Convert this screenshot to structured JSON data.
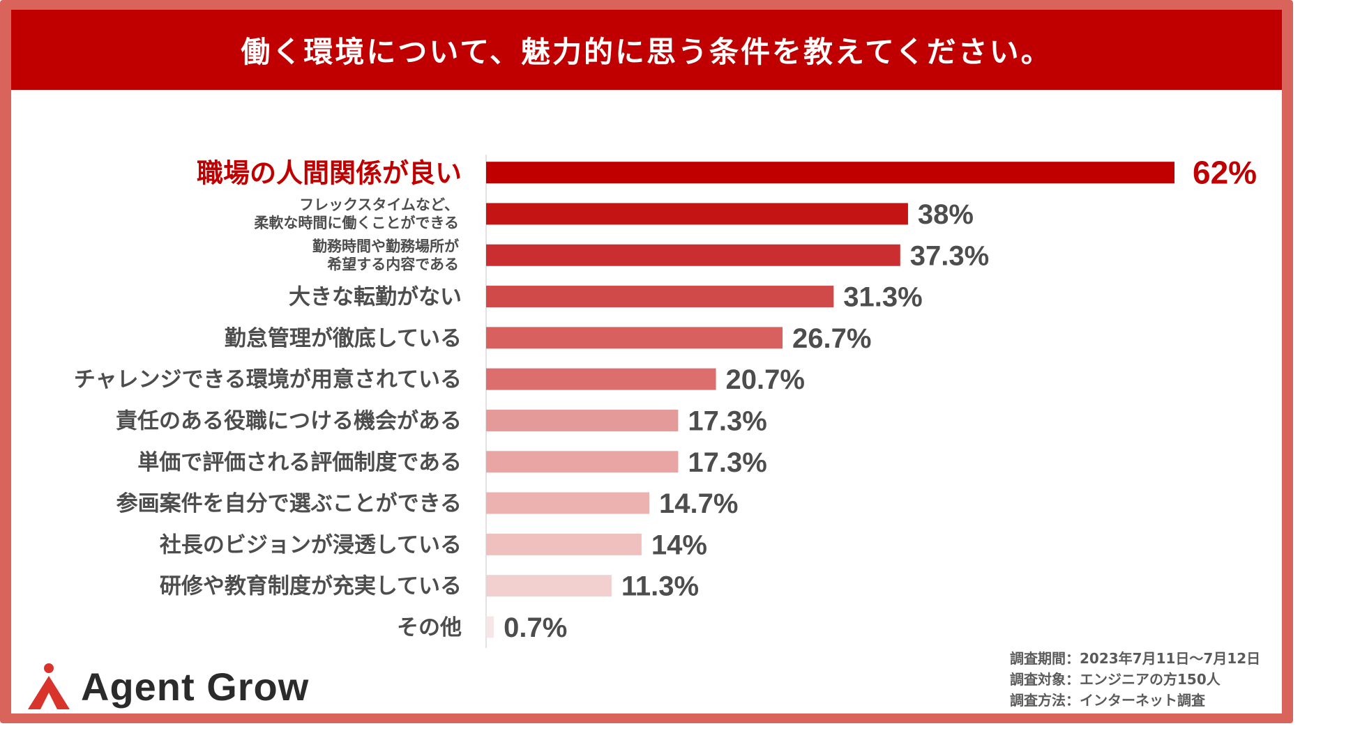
{
  "title": "働く環境について、魅力的に思う条件を教えてください。",
  "chart_data": {
    "type": "bar",
    "orientation": "horizontal",
    "title": "働く環境について、魅力的に思う条件を教えてください。",
    "unit": "%",
    "xlim": [
      0,
      62
    ],
    "categories": [
      [
        "職場の人間関係が良い"
      ],
      [
        "フレックスタイムなど、",
        "柔軟な時間に働くことができる"
      ],
      [
        "勤務時間や勤務場所が",
        "希望する内容である"
      ],
      [
        "大きな転勤がない"
      ],
      [
        "勤怠管理が徹底している"
      ],
      [
        "チャレンジできる環境が用意されている"
      ],
      [
        "責任のある役職につける機会がある"
      ],
      [
        "単価で評価される評価制度である"
      ],
      [
        "参画案件を自分で選ぶことができる"
      ],
      [
        "社長のビジョンが浸透している"
      ],
      [
        "研修や教育制度が充実している"
      ],
      [
        "その他"
      ]
    ],
    "values": [
      62,
      38,
      37.3,
      31.3,
      26.7,
      20.7,
      17.3,
      17.3,
      14.7,
      14,
      11.3,
      0.7
    ],
    "value_labels": [
      "62%",
      "38%",
      "37.3%",
      "31.3%",
      "26.7%",
      "20.7%",
      "17.3%",
      "17.3%",
      "14.7%",
      "14%",
      "11.3%",
      "0.7%"
    ],
    "bar_colors": [
      "#c00000",
      "#c41414",
      "#cb2e30",
      "#d04a4a",
      "#d8605f",
      "#dc6f6e",
      "#e39a98",
      "#e8a5a3",
      "#ebb2b0",
      "#efc0be",
      "#f2d0cf",
      "#f7e6e6"
    ],
    "highlight_color": "#c00000",
    "label_color": "#4d4d4d"
  },
  "survey": {
    "period": "調査期間：2023年7月11日〜7月12日",
    "target": "調査対象：エンジニアの方150人",
    "method": "調査方法：インターネット調査"
  },
  "brand": {
    "name": "Agent Grow",
    "logo_icon": "agent-grow-logo-icon",
    "color": "#d8342c"
  }
}
